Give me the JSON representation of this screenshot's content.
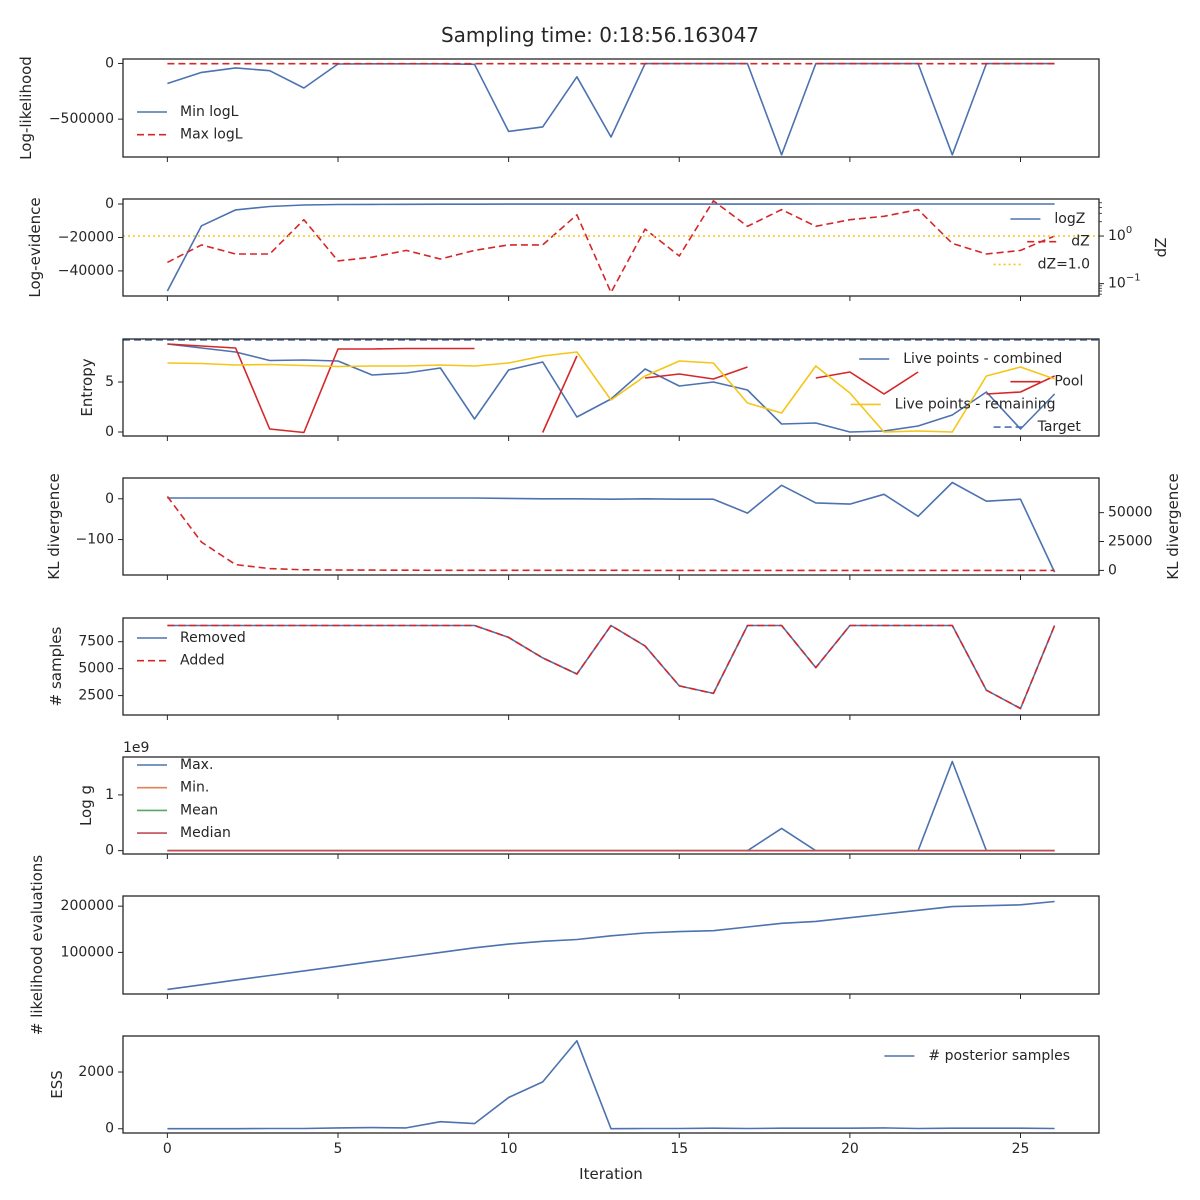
{
  "figure": {
    "title": "Sampling time: 0:18:56.163047",
    "xlabel": "Iteration"
  },
  "chart_data": [
    {
      "type": "line",
      "ylabel": "Log-likelihood",
      "xlim": [
        -1.3,
        27.3
      ],
      "ylim": [
        -840000,
        40000
      ],
      "x_ticks": [
        0,
        5,
        10,
        15,
        20,
        25
      ],
      "y_ticks": [
        {
          "v": 0,
          "label": "0"
        },
        {
          "v": -500000,
          "label": "−500000"
        }
      ],
      "legend": {
        "position": "center-left"
      },
      "series": [
        {
          "name": "Min logL",
          "color": "#4c72b0",
          "dash": "solid",
          "values": [
            -180000,
            -80000,
            -40000,
            -65000,
            -220000,
            -5000,
            -3000,
            -3000,
            -3000,
            -8000,
            -610000,
            -570000,
            -120000,
            -660000,
            -1000,
            -1000,
            -1000,
            -1000,
            -820000,
            -1000,
            -1000,
            -1000,
            -1000,
            -820000,
            -1000,
            -1000,
            -1000
          ]
        },
        {
          "name": "Max logL",
          "color": "#d62728",
          "dash": "dashed",
          "values": [
            -2000,
            -2000,
            -2000,
            -2000,
            -2000,
            -2000,
            -2000,
            -2000,
            -2000,
            -2000,
            -2000,
            -2000,
            -2000,
            -2000,
            -2000,
            -2000,
            -2000,
            -2000,
            -2000,
            -2000,
            -2000,
            -2000,
            -2000,
            -2000,
            -2000,
            -2000,
            -2000
          ]
        }
      ]
    },
    {
      "type": "line",
      "ylabel": "Log-evidence",
      "ylabel_right": "dZ",
      "xlim": [
        -1.3,
        27.3
      ],
      "ylim": [
        -55000,
        3000
      ],
      "y_ticks": [
        {
          "v": 0,
          "label": "0"
        },
        {
          "v": -20000,
          "label": "−20000"
        },
        {
          "v": -40000,
          "label": "−40000"
        }
      ],
      "right_axis": {
        "scale": "log",
        "lim": [
          0.055,
          6
        ],
        "ticks": [
          {
            "v": 1,
            "label": "10^0"
          },
          {
            "v": 0.1,
            "label": "10^−1"
          }
        ]
      },
      "legend": {
        "position": "upper-right"
      },
      "series": [
        {
          "name": "logZ",
          "color": "#4c72b0",
          "dash": "solid",
          "axis": "left",
          "values": [
            -52000,
            -13000,
            -3500,
            -1500,
            -600,
            -300,
            -200,
            -150,
            -100,
            -80,
            -60,
            -50,
            -40,
            -35,
            -30,
            -28,
            -25,
            -22,
            -20,
            -18,
            -16,
            -14,
            -13,
            -12,
            -11,
            -10,
            -9
          ]
        },
        {
          "name": "dZ",
          "color": "#d62728",
          "dash": "dashed",
          "axis": "right",
          "values": [
            0.28,
            0.65,
            0.42,
            0.42,
            2.2,
            0.3,
            0.36,
            0.5,
            0.33,
            0.5,
            0.65,
            0.65,
            2.8,
            0.065,
            1.4,
            0.38,
            5.5,
            1.6,
            3.6,
            1.6,
            2.2,
            2.6,
            3.6,
            0.7,
            0.42,
            0.5,
            1.0
          ]
        },
        {
          "name": "dZ=1.0",
          "color": "#f5c518",
          "dash": "dotted",
          "axis": "right",
          "values": [
            1.0,
            1.0,
            1.0,
            1.0,
            1.0,
            1.0,
            1.0,
            1.0,
            1.0,
            1.0,
            1.0,
            1.0,
            1.0,
            1.0,
            1.0,
            1.0,
            1.0,
            1.0,
            1.0,
            1.0,
            1.0,
            1.0,
            1.0,
            1.0,
            1.0,
            1.0,
            1.0
          ]
        }
      ]
    },
    {
      "type": "line",
      "ylabel": "Entropy",
      "xlim": [
        -1.3,
        27.3
      ],
      "ylim": [
        -0.4,
        9.3
      ],
      "y_ticks": [
        {
          "v": 0,
          "label": "0"
        },
        {
          "v": 5,
          "label": "5"
        }
      ],
      "legend": {
        "position": "upper-right"
      },
      "series": [
        {
          "name": "Live points - combined",
          "color": "#4c72b0",
          "dash": "solid",
          "values": [
            8.8,
            8.4,
            8.0,
            7.15,
            7.2,
            7.1,
            5.7,
            5.9,
            6.4,
            1.3,
            6.2,
            7.0,
            1.5,
            3.3,
            6.3,
            4.6,
            5.0,
            4.2,
            0.8,
            0.9,
            0.0,
            0.1,
            0.6,
            1.7,
            4.0,
            0.3,
            3.8
          ]
        },
        {
          "name": "Pool",
          "color": "#d62728",
          "dash": "solid",
          "values": [
            8.8,
            8.6,
            8.4,
            0.3,
            -0.05,
            8.3,
            8.3,
            8.35,
            8.35,
            8.35,
            null,
            -0.05,
            7.6,
            null,
            5.4,
            5.8,
            5.3,
            6.5,
            null,
            5.4,
            6.0,
            3.8,
            6.0,
            null,
            3.8,
            4.0,
            5.6
          ]
        },
        {
          "name": "Live points - remaining",
          "color": "#f5c518",
          "dash": "solid",
          "values": [
            6.9,
            6.85,
            6.7,
            6.75,
            6.65,
            6.55,
            6.6,
            6.6,
            6.7,
            6.6,
            6.9,
            7.6,
            8.0,
            3.2,
            5.6,
            7.1,
            6.9,
            2.9,
            1.9,
            6.6,
            3.9,
            0.0,
            0.1,
            0.0,
            5.6,
            6.5,
            5.3
          ]
        },
        {
          "name": "Target",
          "color": "#4c72b0",
          "dash": "dashed",
          "values": [
            9.2,
            9.2,
            9.2,
            9.2,
            9.2,
            9.2,
            9.2,
            9.2,
            9.2,
            9.2,
            9.2,
            9.2,
            9.2,
            9.2,
            9.2,
            9.2,
            9.2,
            9.2,
            9.2,
            9.2,
            9.2,
            9.2,
            9.2,
            9.2,
            9.2,
            9.2,
            9.2
          ]
        }
      ]
    },
    {
      "type": "line",
      "ylabel": "KL divergence",
      "ylabel_right": "KL divergence",
      "xlim": [
        -1.3,
        27.3
      ],
      "ylim": [
        -187,
        51
      ],
      "y_ticks": [
        {
          "v": 0,
          "label": "0"
        },
        {
          "v": -100,
          "label": "−100"
        }
      ],
      "right_axis": {
        "scale": "linear",
        "lim": [
          -4000,
          80000
        ],
        "ticks": [
          {
            "v": 0,
            "label": "0"
          },
          {
            "v": 25000,
            "label": "25000"
          },
          {
            "v": 50000,
            "label": "50000"
          }
        ]
      },
      "series": [
        {
          "name": "",
          "color": "#4c72b0",
          "dash": "solid",
          "axis": "left",
          "values": [
            2,
            2,
            2,
            2,
            2,
            2,
            2,
            2,
            2,
            2,
            1,
            0,
            0,
            -1,
            0,
            -1,
            -1,
            -35,
            33,
            -10,
            -13,
            11,
            -43,
            40,
            -6,
            -1,
            -180
          ]
        },
        {
          "name": "",
          "color": "#d62728",
          "dash": "dashed",
          "axis": "right",
          "values": [
            64000,
            24500,
            5000,
            1500,
            500,
            300,
            200,
            150,
            100,
            80,
            60,
            50,
            40,
            30,
            25,
            20,
            20,
            15,
            15,
            10,
            10,
            10,
            10,
            10,
            10,
            10,
            10
          ]
        }
      ]
    },
    {
      "type": "line",
      "ylabel": "# samples",
      "xlim": [
        -1.3,
        27.3
      ],
      "ylim": [
        700,
        9700
      ],
      "y_ticks": [
        {
          "v": 2500,
          "label": "2500"
        },
        {
          "v": 5000,
          "label": "5000"
        },
        {
          "v": 7500,
          "label": "7500"
        }
      ],
      "legend": {
        "position": "upper-left"
      },
      "series": [
        {
          "name": "Removed",
          "color": "#4c72b0",
          "dash": "solid",
          "values": [
            9000,
            9000,
            9000,
            9000,
            9000,
            9000,
            9000,
            9000,
            9000,
            9000,
            7900,
            6000,
            4500,
            9000,
            7100,
            3400,
            2700,
            9000,
            9000,
            5100,
            9000,
            9000,
            9000,
            9000,
            3000,
            1300,
            9000
          ]
        },
        {
          "name": "Added",
          "color": "#d62728",
          "dash": "dashed",
          "values": [
            9000,
            9000,
            9000,
            9000,
            9000,
            9000,
            9000,
            9000,
            9000,
            9000,
            7900,
            6000,
            4500,
            9000,
            7100,
            3400,
            2700,
            9000,
            9000,
            5100,
            9000,
            9000,
            9000,
            9000,
            3000,
            1300,
            9000
          ]
        }
      ]
    },
    {
      "type": "line",
      "ylabel": "Log g",
      "scale_label": "1e9",
      "xlim": [
        -1.3,
        27.3
      ],
      "ylim": [
        -0.06,
        1.68
      ],
      "y_ticks": [
        {
          "v": 0,
          "label": "0"
        },
        {
          "v": 1,
          "label": "1"
        }
      ],
      "legend": {
        "position": "upper-left"
      },
      "series": [
        {
          "name": "Max.",
          "color": "#4c72b0",
          "dash": "solid",
          "values": [
            0,
            0,
            0,
            0,
            0,
            0,
            0,
            0,
            0,
            0,
            0,
            0,
            0,
            0,
            0,
            0,
            0,
            0,
            0.4,
            0,
            0,
            0,
            0,
            1.6,
            0,
            0,
            0
          ]
        },
        {
          "name": "Min.",
          "color": "#dd8452",
          "dash": "solid",
          "values": [
            0,
            0,
            0,
            0,
            0,
            0,
            0,
            0,
            0,
            0,
            0,
            0,
            0,
            0,
            0,
            0,
            0,
            0,
            0,
            0,
            0,
            0,
            0,
            0,
            0,
            0,
            0
          ]
        },
        {
          "name": "Mean",
          "color": "#55a868",
          "dash": "solid",
          "values": [
            0,
            0,
            0,
            0,
            0,
            0,
            0,
            0,
            0,
            0,
            0,
            0,
            0,
            0,
            0,
            0,
            0,
            0,
            0,
            0,
            0,
            0,
            0,
            0,
            0,
            0,
            0
          ]
        },
        {
          "name": "Median",
          "color": "#c44e52",
          "dash": "solid",
          "values": [
            0,
            0,
            0,
            0,
            0,
            0,
            0,
            0,
            0,
            0,
            0,
            0,
            0,
            0,
            0,
            0,
            0,
            0,
            0,
            0,
            0,
            0,
            0,
            0,
            0,
            0,
            0
          ]
        }
      ]
    },
    {
      "type": "line",
      "ylabel": "# likelihood evaluations",
      "xlim": [
        -1.3,
        27.3
      ],
      "ylim": [
        10000,
        222000
      ],
      "y_ticks": [
        {
          "v": 100000,
          "label": "100000"
        },
        {
          "v": 200000,
          "label": "200000"
        }
      ],
      "series": [
        {
          "name": "",
          "color": "#4c72b0",
          "dash": "solid",
          "values": [
            20000,
            30000,
            40000,
            50000,
            60000,
            70000,
            80000,
            90000,
            100000,
            110000,
            118000,
            124000,
            128000,
            136000,
            142000,
            145000,
            147000,
            155000,
            163000,
            167000,
            175000,
            183000,
            191000,
            199000,
            201000,
            203000,
            210000
          ]
        }
      ]
    },
    {
      "type": "line",
      "ylabel": "ESS",
      "xlim": [
        -1.3,
        27.3
      ],
      "ylim": [
        -150,
        3270
      ],
      "y_ticks": [
        {
          "v": 0,
          "label": "0"
        },
        {
          "v": 2000,
          "label": "2000"
        }
      ],
      "legend": {
        "position": "upper-right"
      },
      "series": [
        {
          "name": "# posterior samples",
          "color": "#4c72b0",
          "dash": "solid",
          "values": [
            0,
            0,
            0,
            10,
            10,
            30,
            40,
            30,
            250,
            180,
            1100,
            1650,
            3100,
            0,
            10,
            10,
            20,
            10,
            20,
            20,
            20,
            30,
            10,
            20,
            20,
            20,
            10
          ]
        }
      ]
    }
  ]
}
